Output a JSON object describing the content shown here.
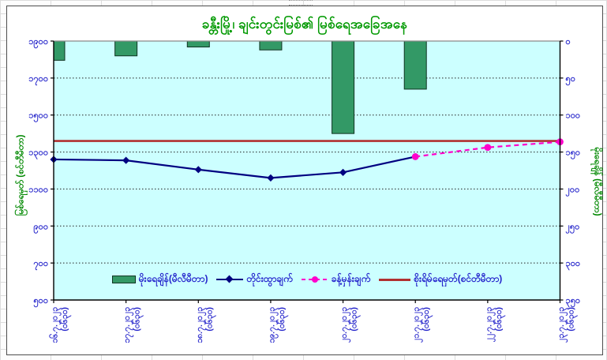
{
  "sheet": {
    "artifact": ""
  },
  "chart": {
    "title": "ခန္တီးမြို့၊ ချင်းတွင်းမြစ်၏ မြစ်ရေအခြေအနေ",
    "colors": {
      "plot_background": "#CCFFFF",
      "bar_fill": "#339966",
      "observed_line": "#000080",
      "forecast_line": "#FF00CC",
      "danger_line": "#B03030",
      "tick_label": "#2A2ACC",
      "axis_title": "#008800",
      "title": "#009900"
    }
  },
  "chart_data": {
    "type": "combo-bar-line",
    "title": "ခန္တီးမြို့၊ ချင်းတွင်းမြစ်၏ မြစ်ရေအခြေအနေ",
    "categories": [
      "၁၆.၇.၂၀၂၃",
      "၁၇.၇.၂၀၂၃",
      "၁၈.၇.၂၀၂၃",
      "၁၉.၇.၂၀၂၃",
      "၂၀.၇.၂၀၂၃",
      "၂၁.၇.၂၀၂၃",
      "၂၂.၇.၂၀၂၃",
      "၂၃.၇.၂၀၂၃"
    ],
    "categories_latin": [
      "16.7.2023",
      "17.7.2023",
      "18.7.2023",
      "19.7.2023",
      "20.7.2023",
      "21.7.2023",
      "22.7.2023",
      "23.7.2023"
    ],
    "category_time_suffix": "(၀၆၃၀)",
    "series": [
      {
        "name": "မိုးရေချိန်(မီလီမီတာ)",
        "type": "bar",
        "axis": "right",
        "color": "#339966",
        "values": [
          26,
          20,
          8,
          12,
          125,
          65,
          null,
          null
        ]
      },
      {
        "name": "တိုင်းထွာချက်",
        "type": "line",
        "axis": "left",
        "marker": "diamond",
        "color": "#000080",
        "values": [
          1260,
          1255,
          1205,
          1160,
          1190,
          1275,
          null,
          null
        ]
      },
      {
        "name": "ခန့်မှန်းချက်",
        "type": "line-dashed",
        "axis": "left",
        "marker": "circle",
        "color": "#FF00CC",
        "values": [
          null,
          null,
          null,
          null,
          null,
          1275,
          1325,
          1355
        ]
      },
      {
        "name": "စိုးရိမ်ရေမှတ်(စင်တီမီတာ)",
        "type": "hline",
        "axis": "left",
        "color": "#B03030",
        "value": 1360
      }
    ],
    "left_axis": {
      "title": "မြစ်ရေမှတ် (စင်တီမီတာ)",
      "min": 500,
      "max": 1900,
      "step": 200,
      "direction": "up",
      "tick_labels": [
        "၁၉၀၀",
        "၁၇၀၀",
        "၁၅၀၀",
        "၁၃၀၀",
        "၁၁၀၀",
        "၉၀၀",
        "၇၀၀",
        "၅၀၀"
      ]
    },
    "right_axis": {
      "title": "မိုးရေချိန် (မီလီမီတာ)",
      "min": 0,
      "max": 350,
      "step": 50,
      "direction": "down",
      "tick_labels": [
        "၀",
        "၅၀",
        "၁၀၀",
        "၁၅၀",
        "၂၀၀",
        "၂၅၀",
        "၃၀၀",
        "၃၅၀"
      ]
    },
    "grid": "horizontal-dotted",
    "plot_bg": "#CCFFFF",
    "legend_position": "bottom-inside"
  }
}
